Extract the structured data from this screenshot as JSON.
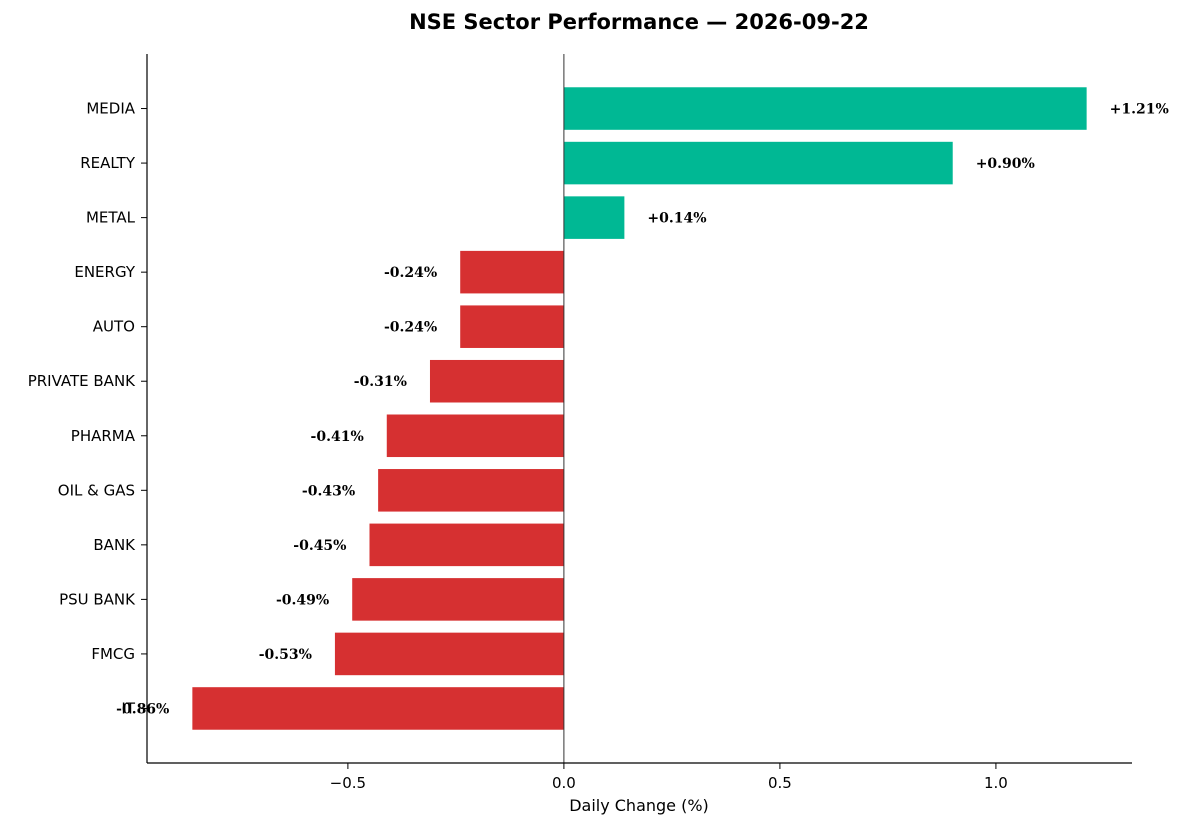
{
  "chart_data": {
    "type": "bar",
    "orientation": "horizontal",
    "title": "NSE Sector Performance — 2026-09-22",
    "xlabel": "Daily Change (%)",
    "ylabel": "",
    "xlim": [
      -0.965,
      1.315
    ],
    "x_ticks": [
      -0.5,
      0.0,
      0.5,
      1.0
    ],
    "x_tick_labels": [
      "−0.5",
      "0.0",
      "0.5",
      "1.0"
    ],
    "grid": false,
    "categories": [
      "MEDIA",
      "REALTY",
      "METAL",
      "ENERGY",
      "AUTO",
      "PRIVATE BANK",
      "PHARMA",
      "OIL & GAS",
      "BANK",
      "PSU BANK",
      "FMCG",
      "IT"
    ],
    "values": [
      1.21,
      0.9,
      0.14,
      -0.24,
      -0.24,
      -0.31,
      -0.41,
      -0.43,
      -0.45,
      -0.49,
      -0.53,
      -0.86
    ],
    "value_labels": [
      "+1.21%",
      "+0.90%",
      "+0.14%",
      "-0.24%",
      "-0.24%",
      "-0.31%",
      "-0.41%",
      "-0.43%",
      "-0.45%",
      "-0.49%",
      "-0.53%",
      "-0.86%"
    ],
    "colors": {
      "positive": "#00b894",
      "negative": "#d63031"
    }
  }
}
